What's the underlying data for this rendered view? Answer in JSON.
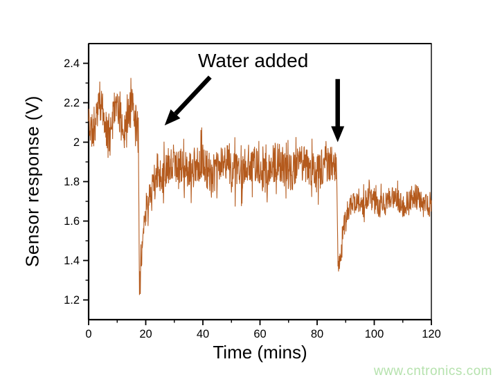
{
  "page": {
    "background": "#ffffff",
    "watermark": {
      "text": "www.cntronics.com",
      "color": "#b5e2ad"
    }
  },
  "chart_data": {
    "type": "line",
    "title": "",
    "xlabel": "Time (mins)",
    "ylabel": "Sensor response (V)",
    "xlim": [
      0,
      120
    ],
    "ylim": [
      1.1,
      2.5
    ],
    "x_ticks": [
      0,
      20,
      40,
      60,
      80,
      100,
      120
    ],
    "x_tick_labels": [
      "0",
      "20",
      "40",
      "60",
      "80",
      "100",
      "120"
    ],
    "x_minor_ticks": [
      10,
      30,
      50,
      70,
      90,
      110
    ],
    "y_ticks": [
      1.2,
      1.4,
      1.6,
      1.8,
      2.0,
      2.2,
      2.4
    ],
    "y_tick_labels": [
      "1.2",
      "1.4",
      "1.6",
      "1.8",
      "2",
      "2.2",
      "2.4"
    ],
    "y_minor_ticks": [
      1.3,
      1.5,
      1.7,
      1.9,
      2.1,
      2.3
    ],
    "grid": false,
    "legend": null,
    "line_color": "#b45a1d",
    "axis_color": "#000000",
    "annotation": {
      "text": "Water added",
      "arrows": [
        {
          "name": "water-added-arrow-1",
          "x1": 42.5,
          "y1": 2.33,
          "x2": 26.6,
          "y2": 2.085
        },
        {
          "name": "water-added-arrow-2",
          "x1": 87.2,
          "y1": 2.32,
          "x2": 87.2,
          "y2": 2.0
        }
      ]
    },
    "key_points": [
      {
        "t": 0,
        "v": 2.15,
        "note": "start, noisy baseline ~2.0-2.3 V"
      },
      {
        "t": 17.4,
        "v": 2.08,
        "note": "just before first water addition"
      },
      {
        "t": 17.8,
        "v": 1.23,
        "note": "first dip minimum"
      },
      {
        "t": 24,
        "v": 1.85,
        "note": "recovered to mid plateau"
      },
      {
        "t": 60,
        "v": 1.87,
        "note": "mid plateau, noise ~1.63-2.12 V"
      },
      {
        "t": 86.9,
        "v": 1.82,
        "note": "just before second water addition"
      },
      {
        "t": 87.8,
        "v": 1.33,
        "note": "second dip minimum"
      },
      {
        "t": 95,
        "v": 1.7,
        "note": "final plateau"
      },
      {
        "t": 120,
        "v": 1.7,
        "note": "end, noise ~1.56-1.88 V"
      }
    ],
    "signal_segments": [
      {
        "t_start": 0,
        "t_end": 17.4,
        "type": "plateau",
        "mean": 2.12,
        "noise": 0.09,
        "wobble_amp": 0.065,
        "wobble_period": 5.5,
        "clamp": [
          1.92,
          2.36
        ]
      },
      {
        "t_start": 17.4,
        "t_end": 17.8,
        "type": "drop",
        "from": 2.08,
        "to": 1.23,
        "noise": 0.015,
        "clamp": [
          1.225,
          2.2
        ]
      },
      {
        "t_start": 17.8,
        "t_end": 24.0,
        "type": "recover",
        "from": 1.28,
        "to": 1.86,
        "tau": 2.4,
        "noise": 0.07,
        "clamp": [
          1.23,
          2.0
        ]
      },
      {
        "t_start": 24.0,
        "t_end": 86.9,
        "type": "plateau",
        "mean": 1.87,
        "noise": 0.1,
        "wobble_amp": 0.03,
        "wobble_period": 9.0,
        "clamp": [
          1.6,
          2.16
        ]
      },
      {
        "t_start": 86.9,
        "t_end": 87.3,
        "type": "drop",
        "from": 1.82,
        "to": 1.38,
        "noise": 0.02,
        "clamp": [
          1.32,
          1.95
        ]
      },
      {
        "t_start": 87.3,
        "t_end": 88.7,
        "type": "plateau",
        "mean": 1.41,
        "noise": 0.05,
        "wobble_amp": 0.03,
        "wobble_period": 1.5,
        "clamp": [
          1.32,
          1.62
        ]
      },
      {
        "t_start": 88.7,
        "t_end": 92.5,
        "type": "recover",
        "from": 1.52,
        "to": 1.7,
        "tau": 1.4,
        "noise": 0.055,
        "clamp": [
          1.42,
          1.9
        ]
      },
      {
        "t_start": 92.5,
        "t_end": 120.0,
        "type": "plateau",
        "mean": 1.7,
        "noise": 0.065,
        "wobble_amp": 0.025,
        "wobble_period": 8.0,
        "clamp": [
          1.55,
          1.92
        ]
      }
    ],
    "sample_step_mins": 0.1,
    "seed": 11
  }
}
